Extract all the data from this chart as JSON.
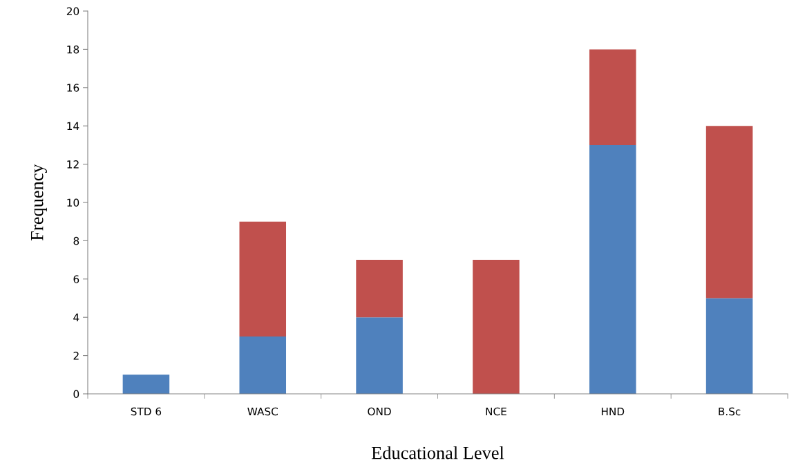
{
  "chart_data": {
    "type": "bar",
    "stacked": true,
    "xlabel": "Educational Level",
    "ylabel": "Frequency",
    "categories": [
      "STD 6",
      "WASC",
      "OND",
      "NCE",
      "HND",
      "B.Sc"
    ],
    "series": [
      {
        "color": "#4f81bd",
        "values": [
          1,
          3,
          4,
          0,
          13,
          5
        ]
      },
      {
        "color": "#c0504d",
        "values": [
          0,
          6,
          3,
          7,
          5,
          9
        ]
      }
    ],
    "ylim": [
      0,
      20
    ],
    "yticks": [
      0,
      2,
      4,
      6,
      8,
      10,
      12,
      14,
      16,
      18,
      20
    ],
    "grid": false,
    "legend": false
  }
}
